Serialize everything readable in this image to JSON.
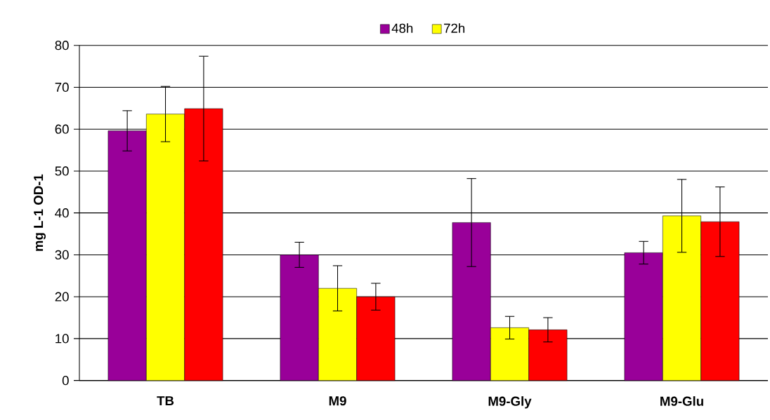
{
  "chart_data": {
    "type": "bar",
    "ylabel": "mg L-1 OD-1",
    "categories": [
      "TB",
      "M9",
      "M9-Gly",
      "M9-Glu"
    ],
    "series": [
      {
        "name": "48h",
        "color": "#990099",
        "values": [
          59.6,
          30.0,
          37.7,
          30.5
        ],
        "errors": [
          4.8,
          3.0,
          10.5,
          2.7
        ]
      },
      {
        "name": "72h",
        "color": "#ffff00",
        "values": [
          63.6,
          22.0,
          12.6,
          39.3
        ],
        "errors": [
          6.6,
          5.4,
          2.7,
          8.7
        ]
      },
      {
        "color": "#ff0000",
        "values": [
          64.9,
          20.0,
          12.1,
          37.9
        ],
        "errors": [
          12.5,
          3.2,
          2.9,
          8.3
        ]
      }
    ],
    "ylim": [
      0,
      80
    ],
    "yticks": [
      0,
      10,
      20,
      30,
      40,
      50,
      60,
      70,
      80
    ],
    "grid": "y",
    "legend": "top"
  }
}
